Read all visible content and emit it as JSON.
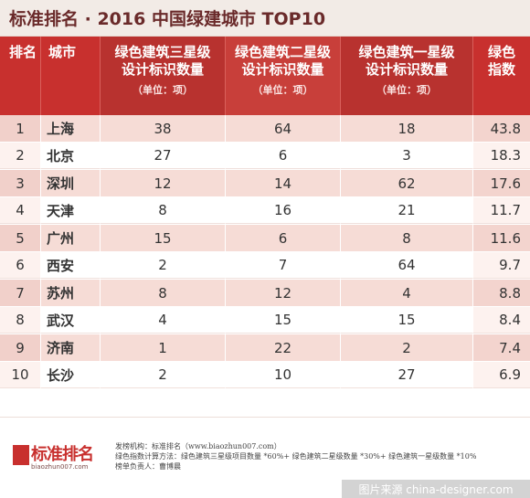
{
  "title": "标准排名 · 2016 中国绿建城市 TOP10",
  "headers": {
    "rank": "排名",
    "city": "城市",
    "three_star_line1": "绿色建筑三星级",
    "three_star_line2": "设计标识数量",
    "three_star_unit": "（单位：项）",
    "two_star_line1": "绿色建筑二星级",
    "two_star_line2": "设计标识数量",
    "two_star_unit": "（单位：项）",
    "one_star_line1": "绿色建筑一星级",
    "one_star_line2": "设计标识数量",
    "one_star_unit": "（单位：项）",
    "index_line1": "绿色",
    "index_line2": "指数"
  },
  "rows": [
    {
      "rank": "1",
      "city": "上海",
      "three": "38",
      "two": "64",
      "one": "18",
      "index": "43.8"
    },
    {
      "rank": "2",
      "city": "北京",
      "three": "27",
      "two": "6",
      "one": "3",
      "index": "18.3"
    },
    {
      "rank": "3",
      "city": "深圳",
      "three": "12",
      "two": "14",
      "one": "62",
      "index": "17.6"
    },
    {
      "rank": "4",
      "city": "天津",
      "three": "8",
      "two": "16",
      "one": "21",
      "index": "11.7"
    },
    {
      "rank": "5",
      "city": "广州",
      "three": "15",
      "two": "6",
      "one": "8",
      "index": "11.6"
    },
    {
      "rank": "6",
      "city": "西安",
      "three": "2",
      "two": "7",
      "one": "64",
      "index": "9.7"
    },
    {
      "rank": "7",
      "city": "苏州",
      "three": "8",
      "two": "12",
      "one": "4",
      "index": "8.8"
    },
    {
      "rank": "8",
      "city": "武汉",
      "three": "4",
      "two": "15",
      "one": "15",
      "index": "8.4"
    },
    {
      "rank": "9",
      "city": "济南",
      "three": "1",
      "two": "22",
      "one": "2",
      "index": "7.4"
    },
    {
      "rank": "10",
      "city": "长沙",
      "three": "2",
      "two": "10",
      "one": "27",
      "index": "6.9"
    }
  ],
  "footer": {
    "logo_text": "标准排名",
    "logo_sub": "biaozhun007.com",
    "line1": "发榜机构：标准排名（www.biaozhun007.com）",
    "line2": "绿色指数计算方法：绿色建筑三星级项目数量 *60%+ 绿色建筑二星级数量 *30%+ 绿色建筑一星级数量 *10%",
    "line3": "榜单负责人：曹博晨"
  },
  "watermark": "图片来源 china-designer.com",
  "colors": {
    "header_red": "#c8302e",
    "row_pink": "#f6dcd6",
    "title_brown": "#6a2a2a"
  }
}
